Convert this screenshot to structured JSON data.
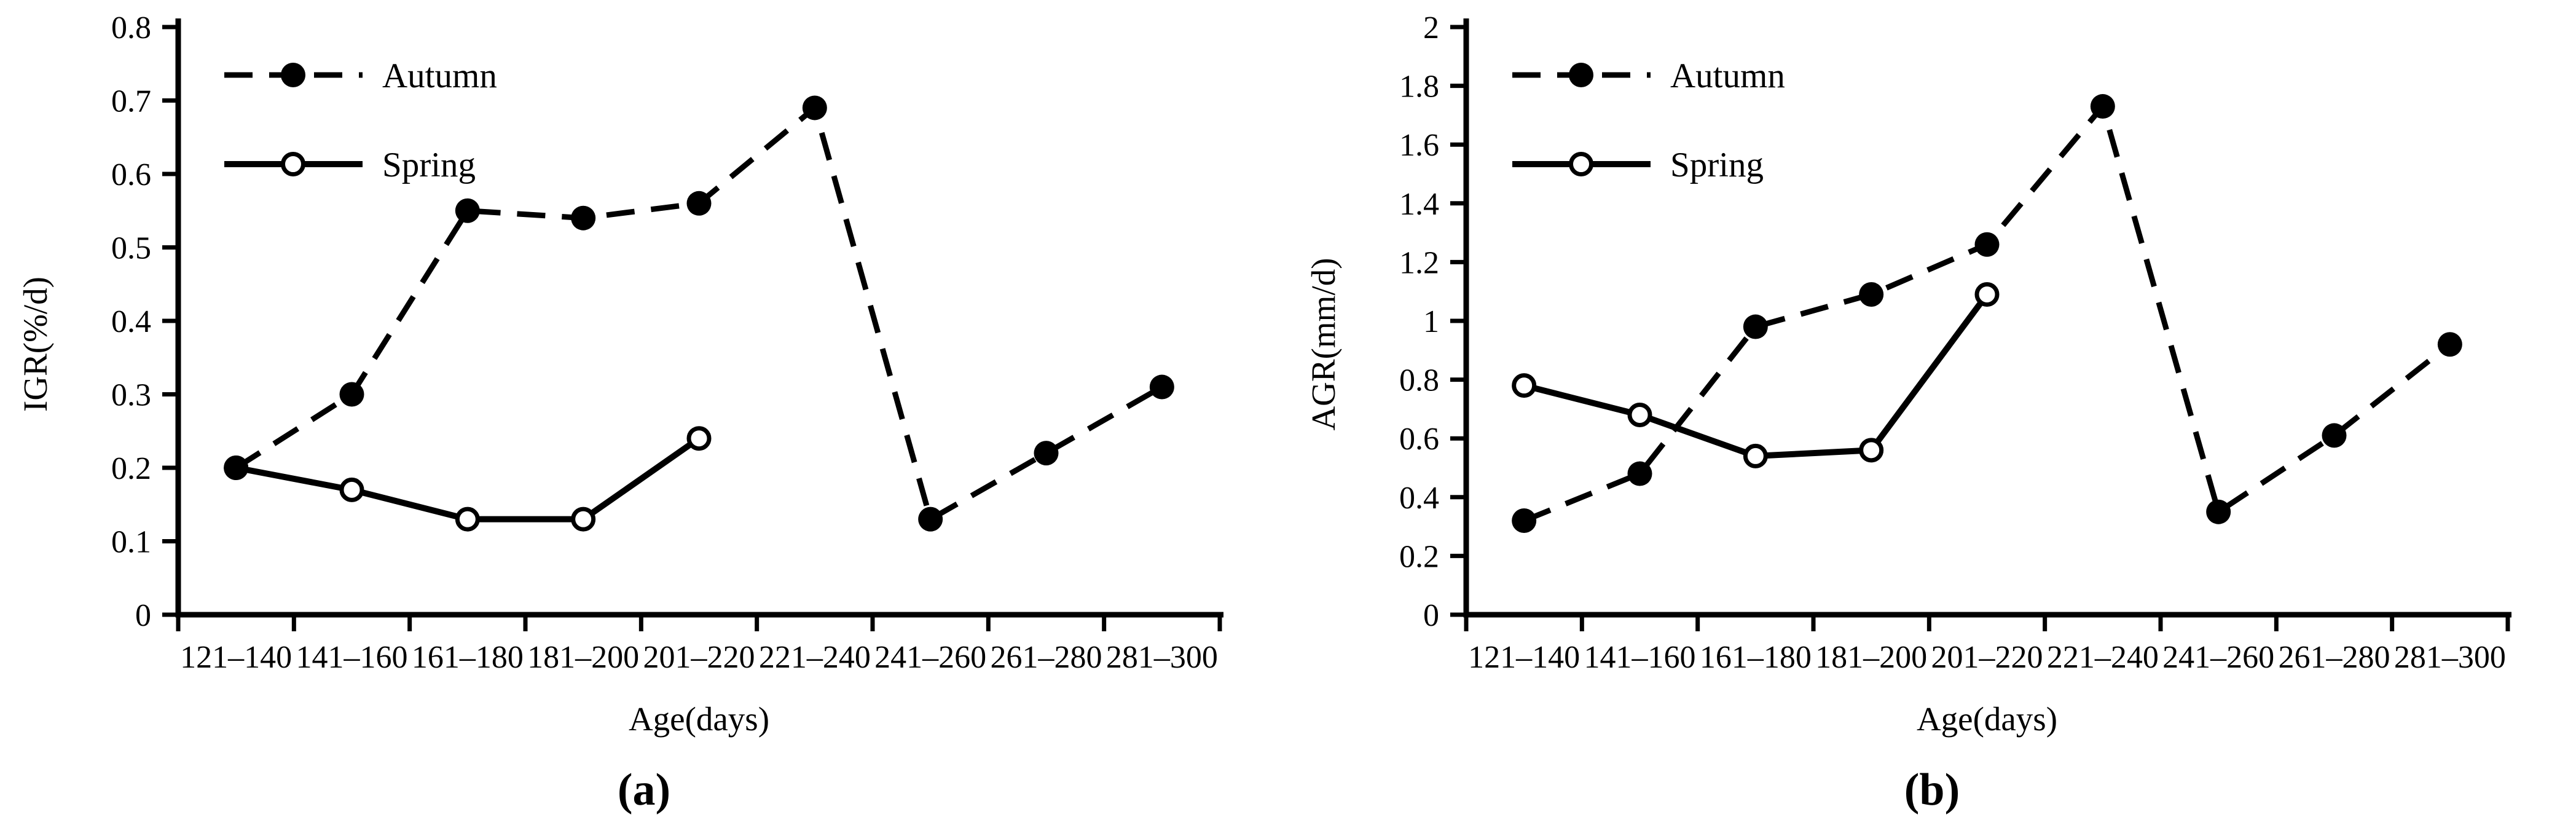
{
  "page": {
    "background": "#ffffff",
    "ink": "#000000"
  },
  "figure": {
    "panels": [
      {
        "caption": "(a)"
      },
      {
        "caption": "(b)"
      }
    ]
  },
  "chart_data": [
    {
      "type": "line",
      "panel_id": "a",
      "title": "",
      "xlabel": "Age(days)",
      "ylabel": "IGR(%/d)",
      "categories": [
        "121–140",
        "141–160",
        "161–180",
        "181–200",
        "201–220",
        "221–240",
        "241–260",
        "261–280",
        "281–300"
      ],
      "ylim": [
        0,
        0.8
      ],
      "ytick_step": 0.1,
      "ytick_labels": [
        "0",
        "0.1",
        "0.2",
        "0.3",
        "0.4",
        "0.5",
        "0.6",
        "0.7",
        "0.8"
      ],
      "grid": false,
      "legend_position": "top-left-inside",
      "series": [
        {
          "name": "Autumn",
          "line_style": "dashed",
          "marker": "filled-circle",
          "color": "#000000",
          "values": [
            0.2,
            0.3,
            0.55,
            0.54,
            0.56,
            0.69,
            0.13,
            0.22,
            0.31
          ]
        },
        {
          "name": "Spring",
          "line_style": "solid",
          "marker": "open-circle",
          "color": "#000000",
          "values": [
            0.2,
            0.17,
            0.13,
            0.13,
            0.24
          ]
        }
      ]
    },
    {
      "type": "line",
      "panel_id": "b",
      "title": "",
      "xlabel": "Age(days)",
      "ylabel": "AGR(mm/d)",
      "categories": [
        "121–140",
        "141–160",
        "161–180",
        "181–200",
        "201–220",
        "221–240",
        "241–260",
        "261–280",
        "281–300"
      ],
      "ylim": [
        0,
        2
      ],
      "ytick_step": 0.2,
      "ytick_labels": [
        "0",
        "0.2",
        "0.4",
        "0.6",
        "0.8",
        "1",
        "1.2",
        "1.4",
        "1.6",
        "1.8",
        "2"
      ],
      "grid": false,
      "legend_position": "top-left-inside",
      "series": [
        {
          "name": "Autumn",
          "line_style": "dashed",
          "marker": "filled-circle",
          "color": "#000000",
          "values": [
            0.32,
            0.48,
            0.98,
            1.09,
            1.26,
            1.73,
            0.35,
            0.61,
            0.92
          ]
        },
        {
          "name": "Spring",
          "line_style": "solid",
          "marker": "open-circle",
          "color": "#000000",
          "values": [
            0.78,
            0.68,
            0.54,
            0.56,
            1.09
          ]
        }
      ]
    }
  ]
}
